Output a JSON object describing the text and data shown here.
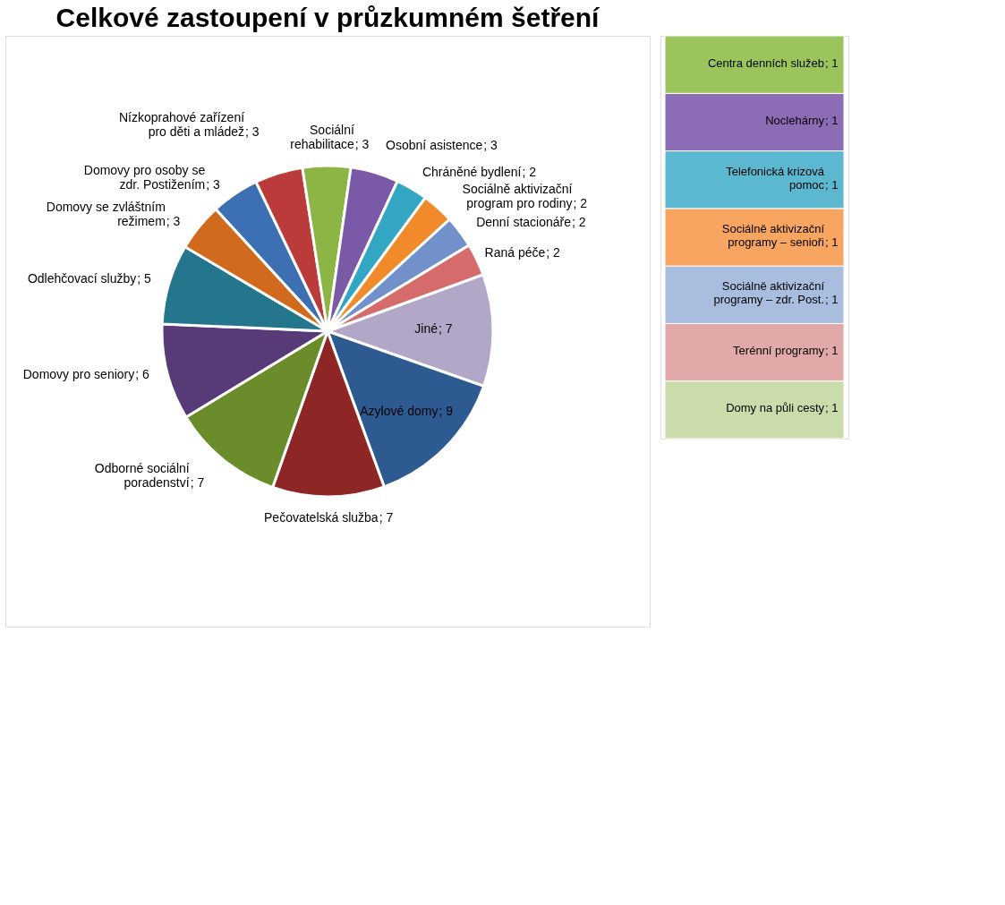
{
  "chart_data": [
    {
      "type": "pie",
      "title": "Celkové zastoupení v průzkumném šetření",
      "categories": [
        "Jiné",
        "Azylové domy",
        "Pečovatelská služba",
        "Odborné sociální poradenství",
        "Domovy pro seniory",
        "Odlehčovací služby",
        "Domovy se zvláštním režimem",
        "Domovy pro osoby se zdr. Postižením",
        "Nízkoprahové zařízení pro děti a mládež",
        "Sociální rehabilitace",
        "Osobní asistence",
        "Chráněné bydlení",
        "Sociálně aktivizační program pro rodiny",
        "Denní stacionáře",
        "Raná péče"
      ],
      "values": [
        7,
        9,
        7,
        7,
        6,
        5,
        3,
        3,
        3,
        3,
        3,
        2,
        2,
        2,
        2
      ],
      "value_labels": [
        "; 7",
        "; 9",
        "; 7",
        "; 7",
        "; 6",
        "; 5",
        "; 3",
        "; 3",
        "; 3",
        "; 3",
        "; 3",
        "; 2",
        "; 2",
        "; 2",
        "; 2"
      ],
      "colors": [
        "#b3a7c8",
        "#2d5b91",
        "#8e2626",
        "#6a8c2a",
        "#573a78",
        "#23768c",
        "#d26a1e",
        "#3d70b2",
        "#bb3b3b",
        "#8cb545",
        "#7a5aa6",
        "#33a6c4",
        "#f08a2a",
        "#7290c9",
        "#d56b6b"
      ]
    },
    {
      "type": "bar",
      "stacked": true,
      "categories": [
        null
      ],
      "series": [
        {
          "name": "Domy na půli cesty",
          "color": "#c9dcaa",
          "values": [
            1
          ],
          "value_labels": [
            "; 1"
          ]
        },
        {
          "name": "Terénní programy",
          "color": "#e2a9a9",
          "values": [
            1
          ],
          "value_labels": [
            "; 1"
          ]
        },
        {
          "name": "Sociálně aktivizační programy – zdr. Post.",
          "color": "#a9bddf",
          "values": [
            1
          ],
          "value_labels": [
            "; 1"
          ]
        },
        {
          "name": "Sociálně aktivizační programy – senioři",
          "color": "#f7a560",
          "values": [
            1
          ],
          "value_labels": [
            "; 1"
          ]
        },
        {
          "name": "Telefonická krizová pomoc",
          "color": "#5cb8d0",
          "values": [
            1
          ],
          "value_labels": [
            "; 1"
          ]
        },
        {
          "name": "Noclehárny",
          "color": "#8c6cb5",
          "values": [
            1
          ],
          "value_labels": [
            "; 1"
          ]
        },
        {
          "name": "Centra denních služeb",
          "color": "#9cc45c",
          "values": [
            1
          ],
          "value_labels": [
            "; 1"
          ]
        }
      ]
    }
  ]
}
